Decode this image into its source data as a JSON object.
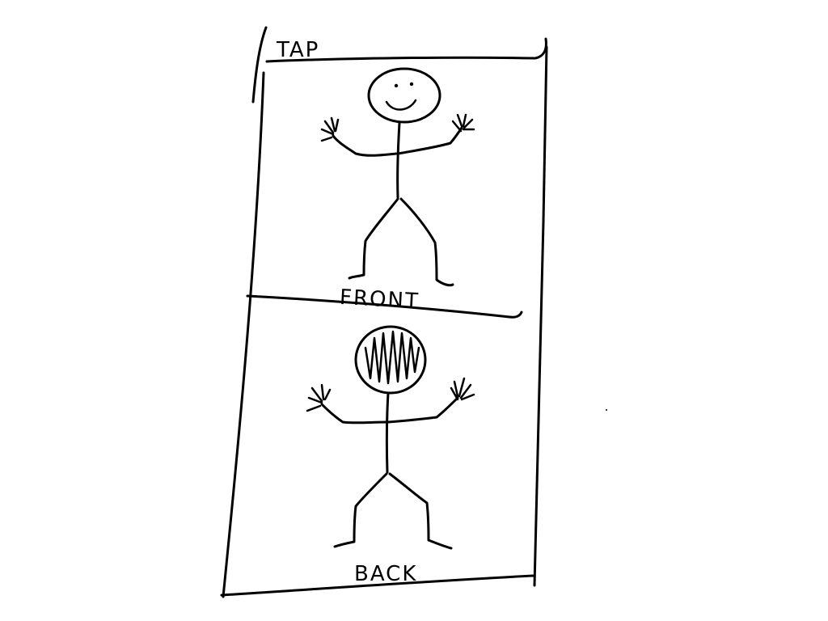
{
  "labels": {
    "top": "TAP",
    "front": "FRONT",
    "back": "BACK"
  },
  "colors": {
    "background": "#ffffff",
    "ink": "#000000"
  }
}
